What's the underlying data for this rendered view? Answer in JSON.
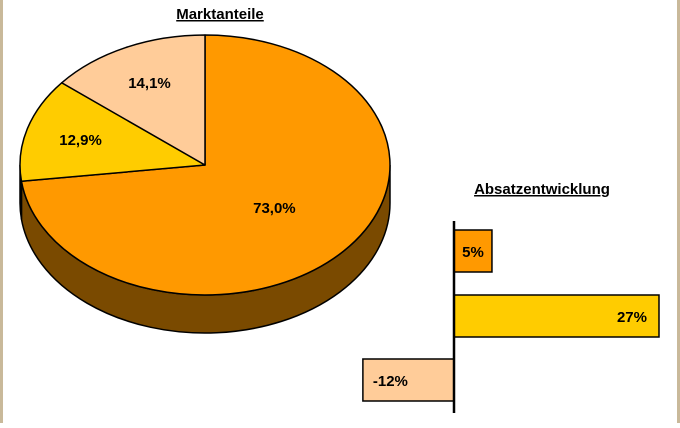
{
  "chart_data": [
    {
      "type": "pie",
      "title": "Marktanteile",
      "slices": [
        {
          "label": "73,0%",
          "value": 73.0,
          "color": "#ff9900",
          "side": "#7a4a00"
        },
        {
          "label": "12,9%",
          "value": 12.9,
          "color": "#ffcc00",
          "side": "#806600"
        },
        {
          "label": "14,1%",
          "value": 14.1,
          "color": "#ffcc99",
          "side": "#806650"
        }
      ]
    },
    {
      "type": "bar",
      "orientation": "horizontal",
      "title": "Absatzentwicklung",
      "values": [
        5,
        27,
        -12
      ],
      "labels": [
        "5%",
        "27%",
        "-12%"
      ],
      "colors": [
        "#ff9900",
        "#ffcc00",
        "#ffcc99"
      ],
      "xlim": [
        -12,
        27
      ]
    }
  ]
}
